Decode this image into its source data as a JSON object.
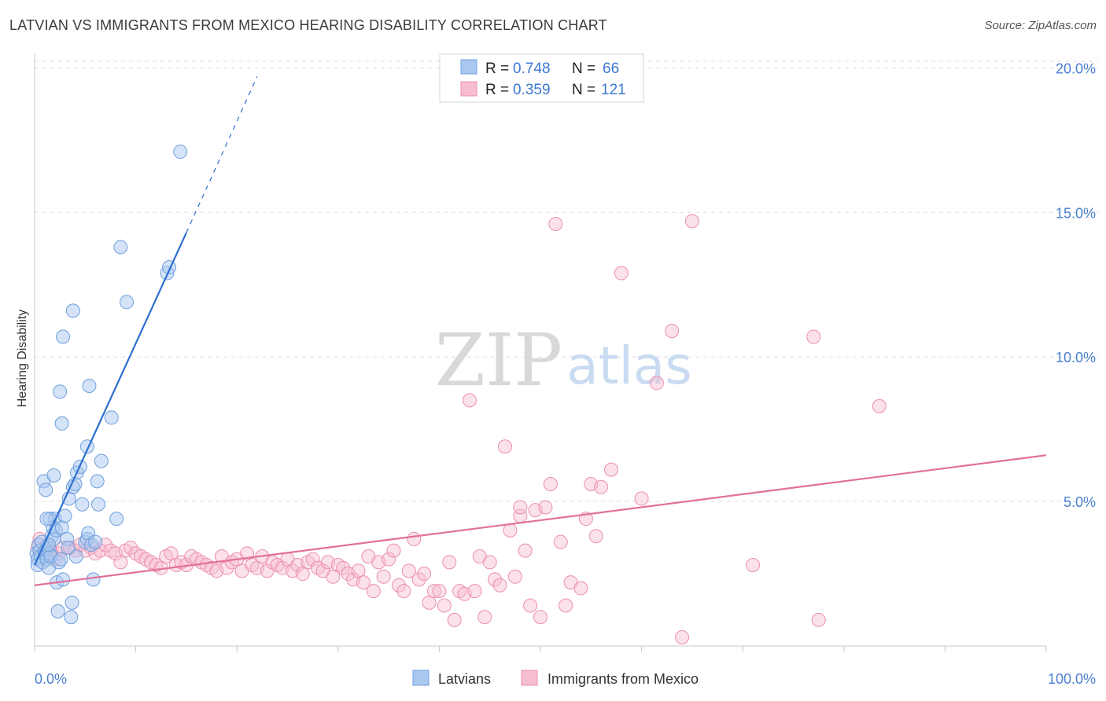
{
  "title": "LATVIAN VS IMMIGRANTS FROM MEXICO HEARING DISABILITY CORRELATION CHART",
  "source": "Source: ZipAtlas.com",
  "watermark": {
    "zip": "ZIP",
    "atlas": "atlas"
  },
  "colors": {
    "latvians_fill": "#a9c8f0",
    "latvians_stroke": "#6f9fdc",
    "latvians_line": "#2d6fcf",
    "mexico_fill": "#f7bdd0",
    "mexico_stroke": "#ec8fb0",
    "mexico_line": "#e2709b",
    "tick_label": "#4a7fd0",
    "grid": "#dddddd"
  },
  "legend_top": {
    "rows": [
      {
        "r_label": "R =",
        "r_value": "0.748",
        "n_label": "N =",
        "n_value": "66"
      },
      {
        "r_label": "R =",
        "r_value": "0.359",
        "n_label": "N =",
        "n_value": "121"
      }
    ]
  },
  "legend_bottom": {
    "series1": "Latvians",
    "series2": "Immigrants from Mexico"
  },
  "chart_data": {
    "type": "scatter",
    "title": "LATVIAN VS IMMIGRANTS FROM MEXICO HEARING DISABILITY CORRELATION CHART",
    "xlabel": "",
    "ylabel": "Hearing Disability",
    "xlim": [
      0,
      100
    ],
    "ylim": [
      0,
      20.5
    ],
    "x_tick_labels": [
      "0.0%",
      "100.0%"
    ],
    "y_ticks": [
      5,
      10,
      15,
      20
    ],
    "y_tick_labels": [
      "5.0%",
      "10.0%",
      "15.0%",
      "20.0%"
    ],
    "grid": true,
    "legend_position": "top-center",
    "series": [
      {
        "name": "Latvians",
        "R": 0.748,
        "N": 66,
        "trend": {
          "x0": 0,
          "y0": 2.8,
          "x1": 15,
          "y1": 14.3,
          "dash_to_x": 22,
          "dash_to_y": 19.7
        },
        "points": [
          [
            0.2,
            3.2
          ],
          [
            0.3,
            3.0
          ],
          [
            0.3,
            2.8
          ],
          [
            0.4,
            3.5
          ],
          [
            0.5,
            3.3
          ],
          [
            0.6,
            3.1
          ],
          [
            0.7,
            3.6
          ],
          [
            0.8,
            2.9
          ],
          [
            1.0,
            3.2
          ],
          [
            1.1,
            3.3
          ],
          [
            1.2,
            3.0
          ],
          [
            1.3,
            3.4
          ],
          [
            1.4,
            2.7
          ],
          [
            1.5,
            3.2
          ],
          [
            1.6,
            3.1
          ],
          [
            1.7,
            3.8
          ],
          [
            1.8,
            4.1
          ],
          [
            1.9,
            3.7
          ],
          [
            2.0,
            4.4
          ],
          [
            2.1,
            4.0
          ],
          [
            2.2,
            2.2
          ],
          [
            2.3,
            1.2
          ],
          [
            2.4,
            2.9
          ],
          [
            2.6,
            3.0
          ],
          [
            2.7,
            4.1
          ],
          [
            2.8,
            2.3
          ],
          [
            3.0,
            4.5
          ],
          [
            3.2,
            3.7
          ],
          [
            3.4,
            5.1
          ],
          [
            3.6,
            1.0
          ],
          [
            3.7,
            1.5
          ],
          [
            3.8,
            5.5
          ],
          [
            4.0,
            5.6
          ],
          [
            4.2,
            6.0
          ],
          [
            4.5,
            6.2
          ],
          [
            4.7,
            4.9
          ],
          [
            5.0,
            3.6
          ],
          [
            5.2,
            3.7
          ],
          [
            5.3,
            3.9
          ],
          [
            5.6,
            3.5
          ],
          [
            0.9,
            5.7
          ],
          [
            1.1,
            5.4
          ],
          [
            1.5,
            4.4
          ],
          [
            1.2,
            4.4
          ],
          [
            1.9,
            5.9
          ],
          [
            2.5,
            8.8
          ],
          [
            2.7,
            7.7
          ],
          [
            2.8,
            10.7
          ],
          [
            3.8,
            11.6
          ],
          [
            5.4,
            9.0
          ],
          [
            5.2,
            6.9
          ],
          [
            6.2,
            5.7
          ],
          [
            6.0,
            3.6
          ],
          [
            6.6,
            6.4
          ],
          [
            7.6,
            7.9
          ],
          [
            8.1,
            4.4
          ],
          [
            8.5,
            13.8
          ],
          [
            9.1,
            11.9
          ],
          [
            13.1,
            12.9
          ],
          [
            13.3,
            13.1
          ],
          [
            14.4,
            17.1
          ],
          [
            5.8,
            2.3
          ],
          [
            6.3,
            4.9
          ],
          [
            4.1,
            3.1
          ],
          [
            3.3,
            3.4
          ],
          [
            1.4,
            3.5
          ]
        ]
      },
      {
        "name": "Immigrants from Mexico",
        "R": 0.359,
        "N": 121,
        "trend": {
          "x0": 0,
          "y0": 2.1,
          "x1": 100,
          "y1": 6.6
        },
        "points": [
          [
            0.3,
            3.4
          ],
          [
            0.5,
            3.7
          ],
          [
            0.8,
            3.2
          ],
          [
            1.2,
            3.5
          ],
          [
            1.6,
            3.3
          ],
          [
            2.0,
            3.0
          ],
          [
            2.4,
            3.2
          ],
          [
            2.8,
            3.4
          ],
          [
            3.5,
            3.4
          ],
          [
            4.0,
            3.3
          ],
          [
            4.5,
            3.5
          ],
          [
            5.0,
            3.3
          ],
          [
            5.6,
            3.4
          ],
          [
            6.0,
            3.2
          ],
          [
            6.5,
            3.3
          ],
          [
            7.0,
            3.5
          ],
          [
            7.5,
            3.3
          ],
          [
            8.0,
            3.2
          ],
          [
            8.5,
            2.9
          ],
          [
            9.0,
            3.3
          ],
          [
            9.5,
            3.4
          ],
          [
            10.0,
            3.2
          ],
          [
            10.5,
            3.1
          ],
          [
            11.0,
            3.0
          ],
          [
            11.5,
            2.9
          ],
          [
            12.0,
            2.8
          ],
          [
            12.5,
            2.7
          ],
          [
            13.0,
            3.1
          ],
          [
            13.5,
            3.2
          ],
          [
            14.0,
            2.8
          ],
          [
            14.5,
            2.9
          ],
          [
            15.0,
            2.8
          ],
          [
            15.5,
            3.1
          ],
          [
            16.0,
            3.0
          ],
          [
            16.5,
            2.9
          ],
          [
            17.0,
            2.8
          ],
          [
            17.5,
            2.7
          ],
          [
            18.0,
            2.6
          ],
          [
            18.5,
            3.1
          ],
          [
            19.0,
            2.7
          ],
          [
            19.5,
            2.9
          ],
          [
            20.0,
            3.0
          ],
          [
            20.5,
            2.6
          ],
          [
            21.0,
            3.2
          ],
          [
            21.5,
            2.8
          ],
          [
            22.0,
            2.7
          ],
          [
            22.5,
            3.1
          ],
          [
            23.0,
            2.6
          ],
          [
            23.5,
            2.9
          ],
          [
            24.0,
            2.8
          ],
          [
            24.5,
            2.7
          ],
          [
            25.0,
            3.0
          ],
          [
            25.5,
            2.6
          ],
          [
            26.0,
            2.8
          ],
          [
            26.5,
            2.5
          ],
          [
            27.0,
            2.9
          ],
          [
            27.5,
            3.0
          ],
          [
            28.0,
            2.7
          ],
          [
            28.5,
            2.6
          ],
          [
            29.0,
            2.9
          ],
          [
            29.5,
            2.4
          ],
          [
            30.0,
            2.8
          ],
          [
            30.5,
            2.7
          ],
          [
            31.0,
            2.5
          ],
          [
            31.5,
            2.3
          ],
          [
            32.0,
            2.6
          ],
          [
            32.5,
            2.2
          ],
          [
            33.0,
            3.1
          ],
          [
            33.5,
            1.9
          ],
          [
            34.0,
            2.9
          ],
          [
            34.5,
            2.4
          ],
          [
            35.0,
            3.0
          ],
          [
            35.5,
            3.3
          ],
          [
            36.0,
            2.1
          ],
          [
            36.5,
            1.9
          ],
          [
            37.0,
            2.6
          ],
          [
            37.5,
            3.7
          ],
          [
            38.0,
            2.3
          ],
          [
            38.5,
            2.5
          ],
          [
            39.0,
            1.5
          ],
          [
            39.5,
            1.9
          ],
          [
            40.0,
            1.9
          ],
          [
            40.5,
            1.4
          ],
          [
            41.0,
            2.9
          ],
          [
            41.5,
            0.9
          ],
          [
            42.0,
            1.9
          ],
          [
            42.5,
            1.8
          ],
          [
            43.0,
            8.5
          ],
          [
            43.5,
            1.9
          ],
          [
            44.0,
            3.1
          ],
          [
            44.5,
            1.0
          ],
          [
            45.0,
            2.9
          ],
          [
            45.5,
            2.3
          ],
          [
            46.0,
            2.1
          ],
          [
            46.5,
            6.9
          ],
          [
            47.0,
            4.0
          ],
          [
            47.5,
            2.4
          ],
          [
            48.0,
            4.5
          ],
          [
            48.5,
            3.3
          ],
          [
            49.0,
            1.4
          ],
          [
            49.5,
            4.7
          ],
          [
            50.0,
            1.0
          ],
          [
            50.5,
            4.8
          ],
          [
            51.0,
            5.6
          ],
          [
            51.5,
            14.6
          ],
          [
            52.0,
            3.6
          ],
          [
            52.5,
            1.4
          ],
          [
            53.0,
            2.2
          ],
          [
            54.0,
            2.0
          ],
          [
            54.5,
            4.4
          ],
          [
            55.0,
            5.6
          ],
          [
            55.5,
            3.8
          ],
          [
            56.0,
            5.5
          ],
          [
            57.0,
            6.1
          ],
          [
            58.0,
            12.9
          ],
          [
            60.0,
            5.1
          ],
          [
            61.5,
            9.1
          ],
          [
            63.0,
            10.9
          ],
          [
            64.0,
            0.3
          ],
          [
            65.0,
            14.7
          ],
          [
            71.0,
            2.8
          ],
          [
            77.0,
            10.7
          ],
          [
            77.5,
            0.9
          ],
          [
            83.5,
            8.3
          ],
          [
            48.0,
            4.8
          ]
        ]
      }
    ]
  }
}
